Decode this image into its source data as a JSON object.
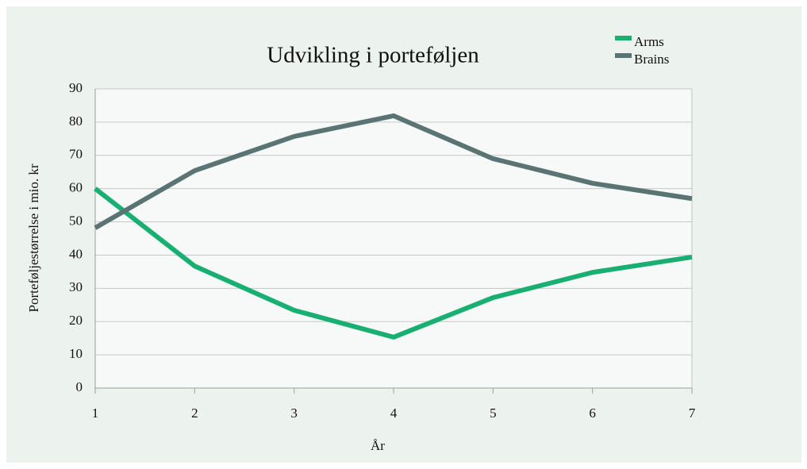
{
  "chart_data": {
    "type": "line",
    "title": "Udvikling i porteføljen",
    "x_label": "År",
    "y_label": "Porteføljestørrelse i mio. kr",
    "x": [
      1,
      2,
      3,
      4,
      5,
      6,
      7
    ],
    "series": [
      {
        "name": "Arms",
        "color": "#1aaf72",
        "values": [
          60,
          36.7,
          23.4,
          15.3,
          27.2,
          34.8,
          39.4
        ]
      },
      {
        "name": "Brains",
        "color": "#5a7474",
        "values": [
          48.2,
          65.4,
          75.7,
          81.9,
          69,
          61.6,
          57
        ]
      }
    ],
    "xlim": [
      1,
      7
    ],
    "xticks": [
      1,
      2,
      3,
      4,
      5,
      6,
      7
    ],
    "ylim": [
      0,
      90
    ],
    "yticks": [
      0,
      10,
      20,
      30,
      40,
      50,
      60,
      70,
      80,
      90
    ],
    "grid": true
  }
}
